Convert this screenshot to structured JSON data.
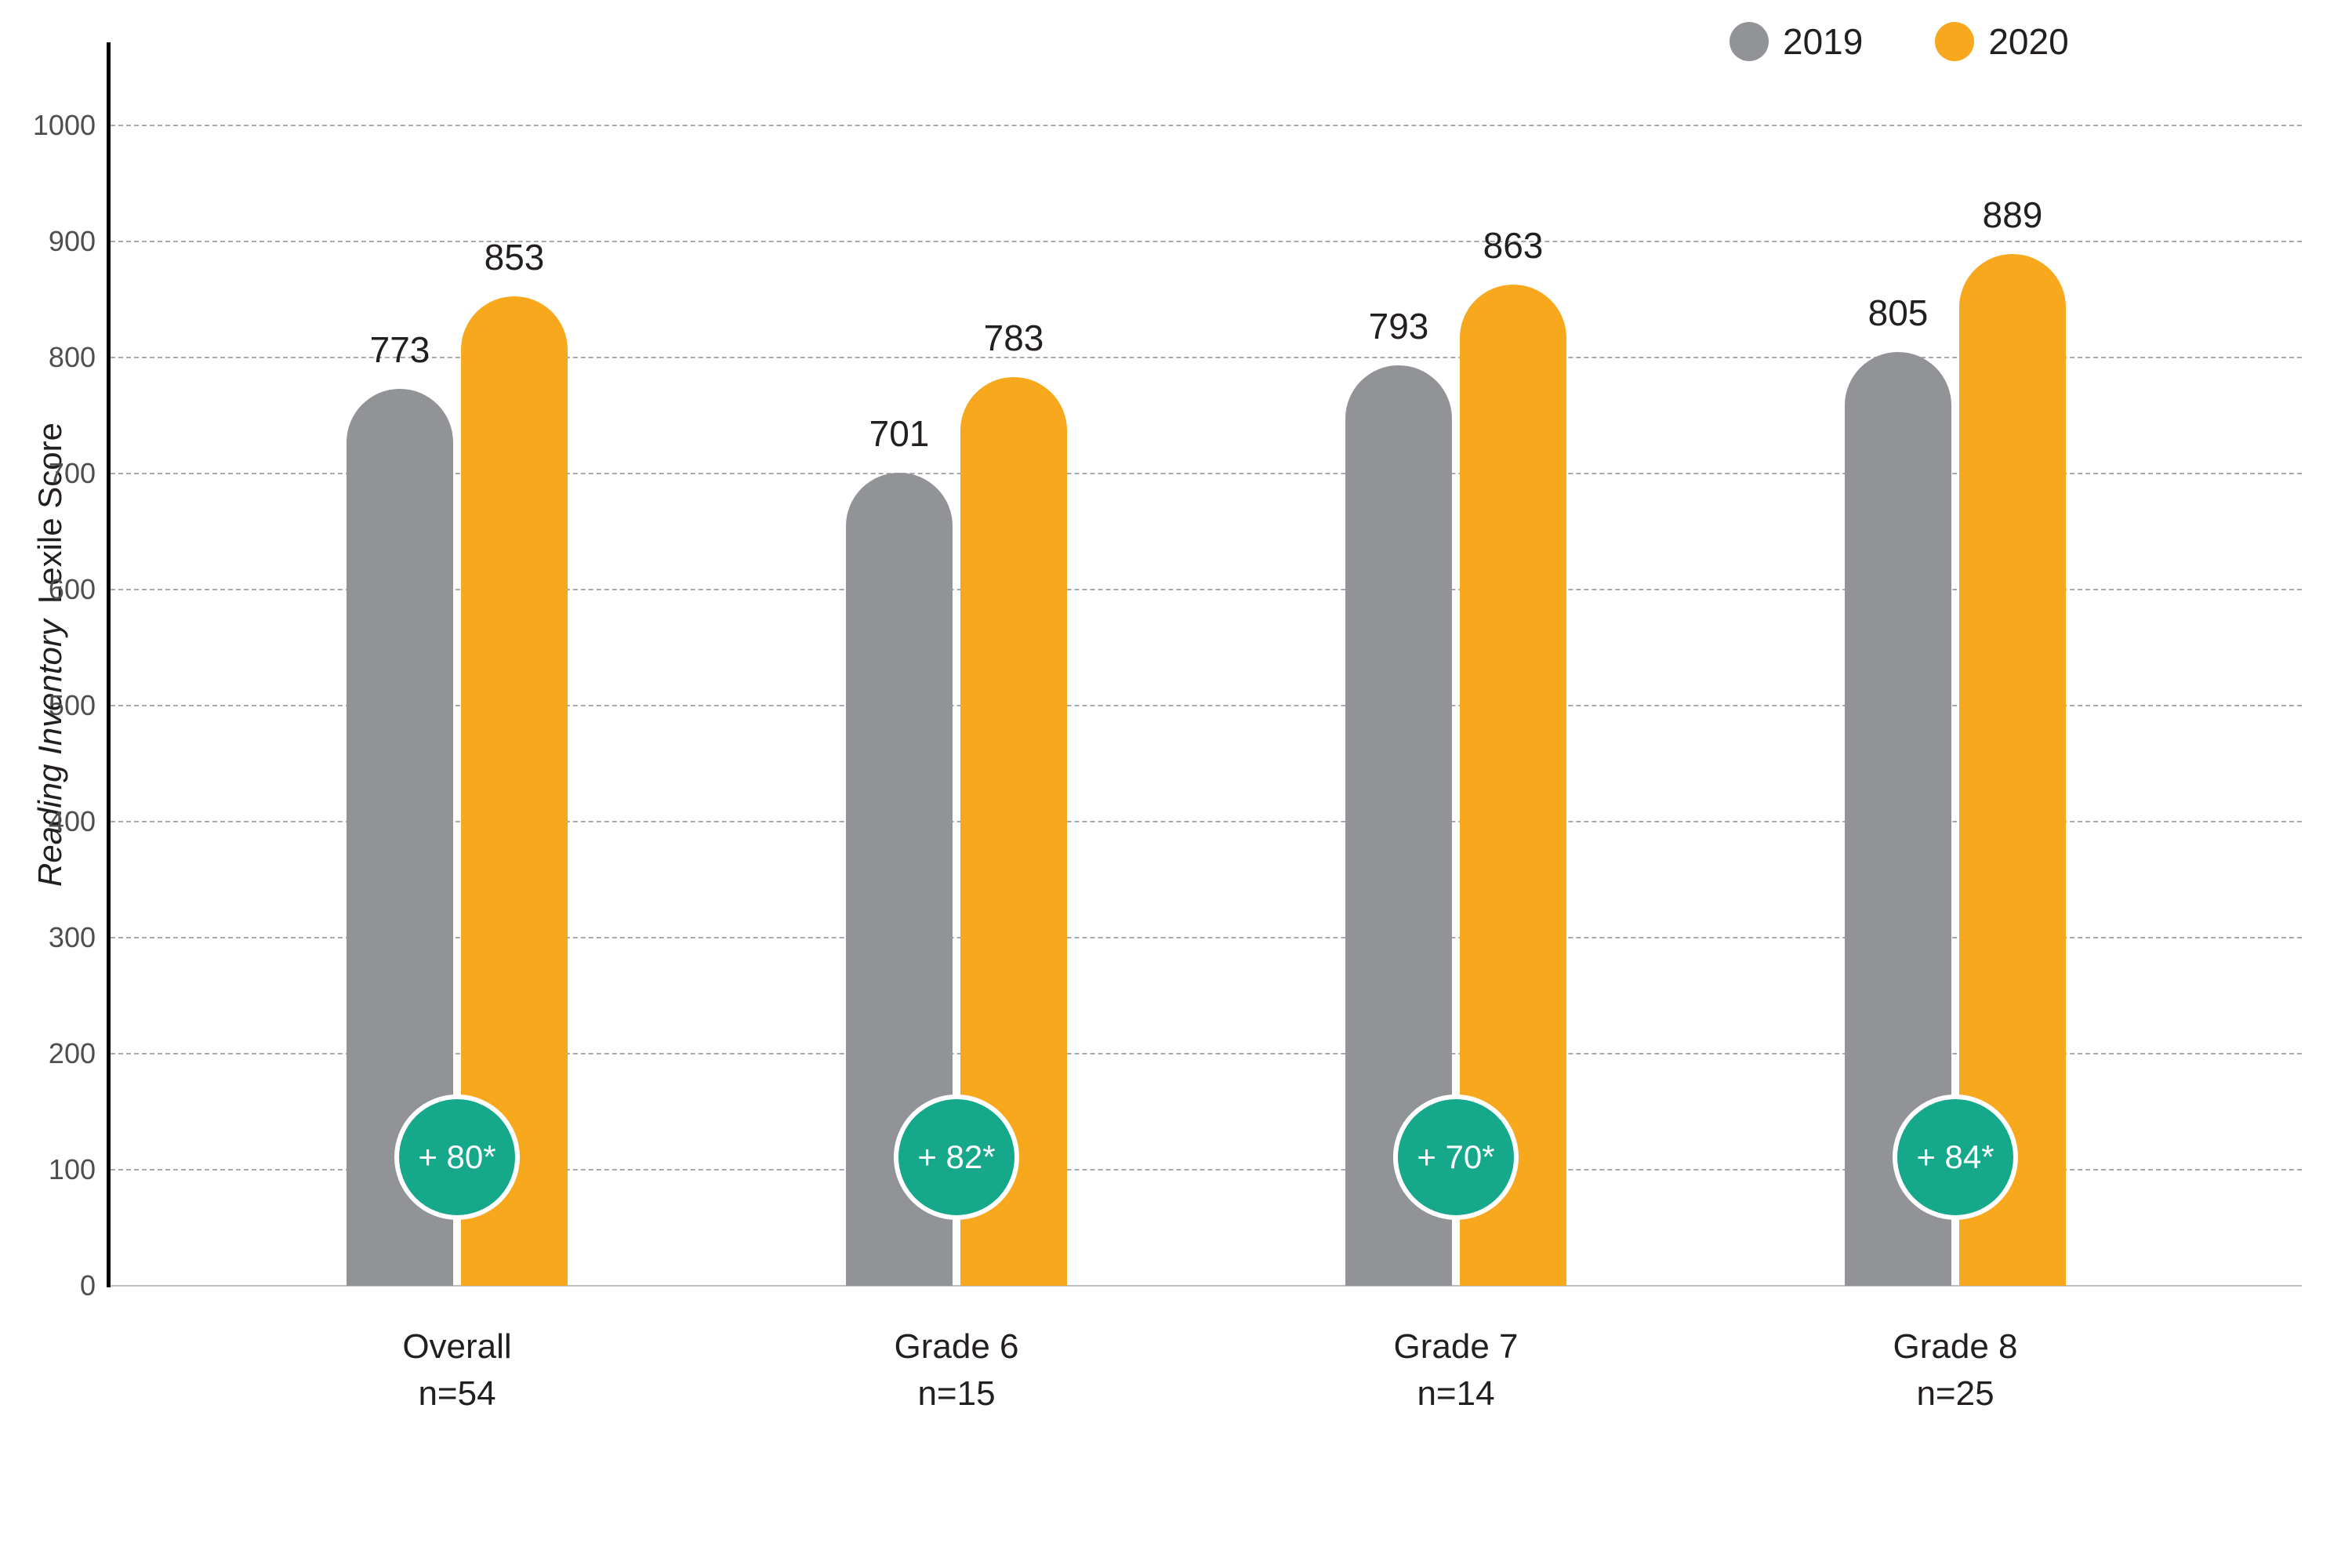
{
  "page": {
    "background": "#ffffff"
  },
  "legend": [
    {
      "label": "2019",
      "color": "#919396"
    },
    {
      "label": "2020",
      "color": "#F7A81C"
    }
  ],
  "y_axis_title": {
    "italic_part": "Reading Inventory",
    "normal_part": "Lexile Score"
  },
  "chart_data": {
    "type": "bar",
    "title": "",
    "categories": [
      "Overall",
      "Grade 6",
      "Grade 7",
      "Grade 8"
    ],
    "category_sublabels": [
      "n=54",
      "n=15",
      "n=14",
      "n=25"
    ],
    "series": [
      {
        "name": "2019",
        "color": "#919396",
        "values": [
          773,
          701,
          793,
          805
        ]
      },
      {
        "name": "2020",
        "color": "#F7A81C",
        "values": [
          853,
          783,
          863,
          889
        ]
      }
    ],
    "gain_badges": {
      "color": "#15A88A",
      "text_color": "#ffffff",
      "labels": [
        "+ 80*",
        "+ 82*",
        "+ 70*",
        "+ 84*"
      ]
    },
    "ylabel": "Reading Inventory Lexile Score",
    "ylim": [
      0,
      1000
    ],
    "yticks": [
      0,
      100,
      200,
      300,
      400,
      500,
      600,
      700,
      800,
      900,
      1000
    ],
    "grid": "horizontal-dashed",
    "legend_position": "top-right",
    "bar_style": "rounded-top"
  }
}
